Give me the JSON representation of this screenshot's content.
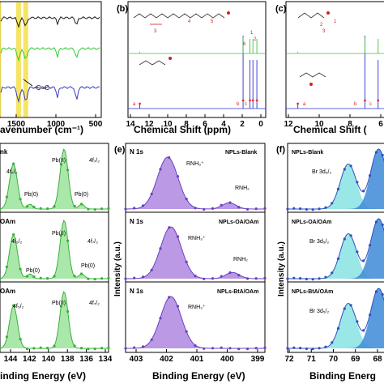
{
  "panels": {
    "ftir": {
      "xlabel": "avenumber (cm⁻¹)",
      "tick_labels": [
        "1500",
        "1000",
        "500"
      ],
      "annotation": "-C=C-"
    },
    "b": {
      "letter": "(b)",
      "xlabel": "Chemical Shift (ppm)",
      "tick_labels": [
        "14",
        "12",
        "10",
        "8",
        "6",
        "4",
        "2",
        "0"
      ],
      "peak_labels": [
        "1",
        "2",
        "3",
        "4",
        "5",
        "6"
      ],
      "bottom_labels": [
        "a",
        "b",
        "c"
      ]
    },
    "c": {
      "letter": "(c)",
      "xlabel": "Chemical Shift (",
      "tick_labels": [
        "12",
        "10",
        "8",
        "6"
      ],
      "peak_labels": [
        "1",
        "2",
        "3"
      ],
      "bottom_labels": [
        "a",
        "b",
        "c"
      ]
    },
    "pb": {
      "titles": [
        "nk",
        "OAm",
        "OAm"
      ],
      "labels_top": [
        "4f₅/₂",
        "Pb(II)",
        "4f₇/₂",
        "Pb(0)",
        "Pb(0)"
      ],
      "labels_mid": [
        "4f₅/₂",
        "Pb(II)",
        "4f₇/₂",
        "Pb(0)",
        "Pb(0)"
      ],
      "labels_bot": [
        "4f₅/₂",
        "Pb(II)",
        "4f₇/₂"
      ],
      "xlabel": "inding Energy (eV)",
      "tick_labels": [
        "144",
        "142",
        "140",
        "138",
        "136",
        "134"
      ]
    },
    "e": {
      "letter": "(e)",
      "titles": [
        "N 1s",
        "N 1s",
        "N 1s"
      ],
      "samples": [
        "NPLs-Blank",
        "NPLs-OA/OAm",
        "NPLs-BtA/OAm"
      ],
      "peak_labels": [
        "RNH₃⁺",
        "RNH₂",
        "RNH₃⁺",
        "RNH₂",
        "RNH₃⁺"
      ],
      "ylabel": "Intensity (a.u.)",
      "xlabel": "Binding Energy (eV)",
      "tick_labels": [
        "403",
        "402",
        "401",
        "400",
        "399"
      ]
    },
    "f": {
      "letter": "(f)",
      "samples": [
        "NPLs-Blank",
        "NPLs-OA/OAm",
        "NPLs-BtA/OAm"
      ],
      "peak_labels": [
        "Br 3d₅/₂",
        "Br 3d₅/₂",
        "Br 3d₅/₂"
      ],
      "ylabel": "Intensity (a.u.)",
      "xlabel": "Binding Energ",
      "tick_labels": [
        "72",
        "71",
        "70",
        "69",
        "68"
      ]
    }
  },
  "colors": {
    "ftir_lines": [
      "#1a1a1a",
      "#39c639",
      "#3a3ac8"
    ],
    "ftir_bands": "#f4e14a",
    "nmr_top": "#e03030",
    "nmr_mid": "#3ec43e",
    "nmr_bot": "#2f2fd0",
    "pb_fill": "#9be39b",
    "pb_dots": "#3ab03a",
    "n_fill": "#b087e0",
    "n_dots": "#6a3fc0",
    "br_fill": "#87e3e3",
    "br_fill2": "#3d8ad8",
    "br_dots": "#2f4fc0"
  },
  "chart_data": [
    {
      "type": "line",
      "panel": "ftir",
      "xlabel": "avenumber (cm⁻¹)",
      "x_ticks": [
        1500,
        1000,
        500
      ],
      "series": [
        {
          "values": [
            0.88,
            0.8,
            0.86,
            0.83,
            0.84
          ]
        },
        {
          "values": [
            0.6,
            0.45,
            0.55,
            0.48,
            0.5
          ]
        },
        {
          "values": [
            0.22,
            0.1,
            0.18,
            0.05,
            0.12
          ]
        }
      ],
      "highlight_bands_cm1": [
        1720,
        1470,
        1380
      ]
    },
    {
      "type": "line",
      "panel": "b",
      "xlabel": "Chemical Shift (ppm)",
      "xlim": [
        14,
        0
      ],
      "peaks_ppm": [
        12.8,
        2.3,
        1.6,
        1.3,
        0.9
      ]
    },
    {
      "type": "line",
      "panel": "c",
      "xlabel": "Chemical Shift (",
      "xlim": [
        13,
        5
      ],
      "peaks_ppm": [
        12.1,
        7.0,
        6.0
      ]
    },
    {
      "type": "area",
      "panel": "pb",
      "xlabel": "inding Energy (eV)",
      "xlim": [
        144.5,
        134
      ],
      "peaks_eV": [
        143.2,
        138.3
      ],
      "minor_peaks_eV": [
        141.6,
        136.6
      ]
    },
    {
      "type": "area",
      "panel": "e",
      "xlabel": "Binding Energy (eV)",
      "ylabel": "Intensity (a.u.)",
      "xlim": [
        403.3,
        399
      ],
      "series": [
        {
          "name": "NPLs-Blank",
          "peaks_eV": [
            402.0,
            400.1
          ]
        },
        {
          "name": "NPLs-OA/OAm",
          "peaks_eV": [
            401.9,
            400.0
          ]
        },
        {
          "name": "NPLs-BtA/OAm",
          "peaks_eV": [
            401.9
          ]
        }
      ]
    },
    {
      "type": "area",
      "panel": "f",
      "xlabel": "Binding Energ",
      "ylabel": "Intensity (a.u.)",
      "xlim": [
        72,
        68
      ],
      "peaks_eV": [
        69.6,
        68.4
      ]
    }
  ]
}
